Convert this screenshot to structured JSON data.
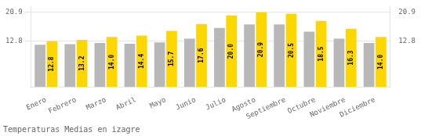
{
  "chart_data": {
    "type": "bar",
    "title": "Temperaturas Medias en izagre",
    "categories": [
      "Enero",
      "Febrero",
      "Marzo",
      "Abril",
      "Mayo",
      "Junio",
      "Julio",
      "Agosto",
      "Septiembre",
      "Octubre",
      "Noviembre",
      "Diciembre"
    ],
    "series": [
      {
        "color": "#B8B8B8",
        "values": [
          11.8,
          12.0,
          12.3,
          12.1,
          12.5,
          13.5,
          16.5,
          17.5,
          17.5,
          15.5,
          13.5,
          12.3
        ]
      },
      {
        "color": "#FFD700",
        "values": [
          12.8,
          13.2,
          14.0,
          14.4,
          15.7,
          17.6,
          20.0,
          20.9,
          20.5,
          18.5,
          16.3,
          14.0
        ],
        "data_labels": true,
        "value_labels": [
          "12.8",
          "13.2",
          "14.0",
          "14.4",
          "15.7",
          "17.6",
          "20.0",
          "20.9",
          "20.5",
          "18.5",
          "16.3",
          "14.0"
        ]
      }
    ],
    "ylim": [
      0,
      22.5
    ],
    "yticks": [
      12.8,
      20.9
    ],
    "y2lim": [
      0,
      22.5
    ],
    "y2ticks": [
      12.8,
      20.9
    ],
    "grid": true
  }
}
